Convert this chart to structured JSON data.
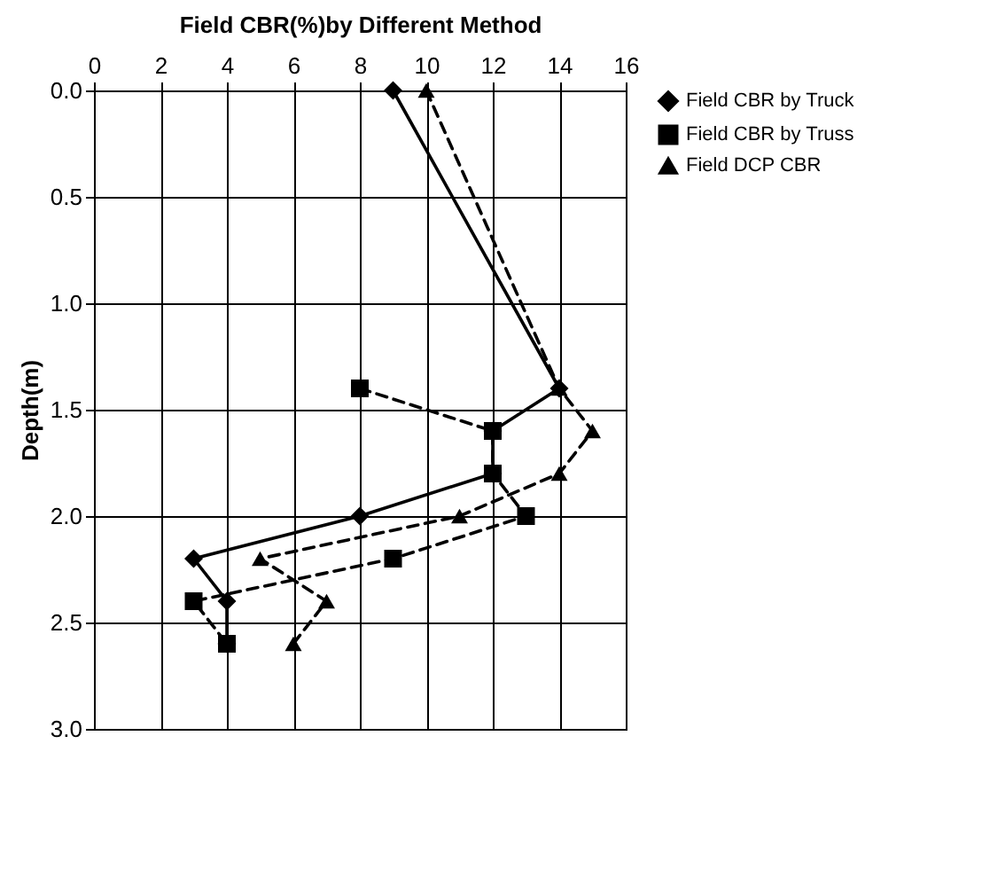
{
  "chart_data": {
    "type": "line",
    "xlabel": "Field CBR(%)by Different Method",
    "ylabel": "Depth(m)",
    "xlim": [
      0,
      16
    ],
    "xticks": [
      0,
      2,
      4,
      6,
      8,
      10,
      12,
      14,
      16
    ],
    "ylim": [
      3,
      0
    ],
    "yticks": [
      {
        "value": 0,
        "label": "0.0"
      },
      {
        "value": 0.5,
        "label": "0.5"
      },
      {
        "value": 1,
        "label": "1.0"
      },
      {
        "value": 1.5,
        "label": "1.5"
      },
      {
        "value": 2,
        "label": "2.0"
      },
      {
        "value": 2.5,
        "label": "2.5"
      },
      {
        "value": 3,
        "label": "3.0"
      }
    ],
    "grid": true,
    "legend": "right",
    "series": [
      {
        "name": "Field CBR by Truck",
        "color": "#000000",
        "marker": "diamond",
        "line_style": "solid",
        "x": [
          9,
          14,
          12,
          12,
          8,
          3,
          4,
          4
        ],
        "values": [
          0,
          1.4,
          1.6,
          1.8,
          2.0,
          2.2,
          2.4,
          2.6
        ]
      },
      {
        "name": "Field CBR by Truss",
        "color": "#000000",
        "marker": "square",
        "line_style": "dashed",
        "x": [
          8,
          12,
          12,
          13,
          9,
          3,
          4
        ],
        "values": [
          1.4,
          1.6,
          1.8,
          2.0,
          2.2,
          2.4,
          2.6
        ]
      },
      {
        "name": "Field DCP CBR",
        "color": "#000000",
        "marker": "triangle",
        "line_style": "dashed",
        "x": [
          10,
          14,
          15,
          14,
          11,
          5,
          7,
          6
        ],
        "values": [
          0,
          1.4,
          1.6,
          1.8,
          2.0,
          2.2,
          2.4,
          2.6
        ]
      }
    ]
  }
}
